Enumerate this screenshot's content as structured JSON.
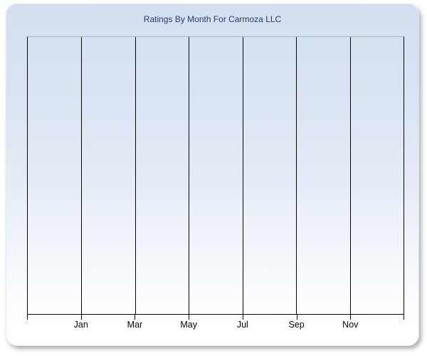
{
  "window": {
    "background": "#ffffff"
  },
  "card": {
    "gradient_top_color": "#d3dff0",
    "gradient_bottom_color": "#ffffff",
    "border_color": "#e2e6ee",
    "shadow_color": "#6e6e6e"
  },
  "chart": {
    "title_color": "#29396b",
    "gridline_color": "#050505",
    "plot_top_border_color": "#a9b3c4",
    "axis_label_color": "#050505"
  },
  "chart_data": {
    "type": "line",
    "title": "Ratings By Month For Carmoza LLC",
    "xlabel": "",
    "ylabel": "",
    "x_tick_labels": [
      "Jan",
      "Mar",
      "May",
      "Jul",
      "Sep",
      "Nov"
    ],
    "y_tick_labels": [],
    "series": [],
    "grid": "vertical gridlines only, no horizontal gridlines",
    "legend": "none",
    "notes": "Plot area is empty: no data points, bars or lines are rendered and the y-axis has no tick labels. X axis spans twelve months with a tick every month-pair boundary and labels on alternate months."
  }
}
